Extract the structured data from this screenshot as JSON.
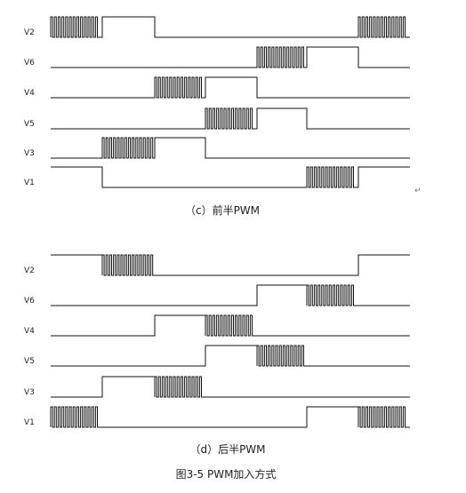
{
  "panels": [
    {
      "caption": "（c）前半PWM",
      "signals": [
        {
          "name": "V2",
          "segments": [
            [
              "pwm",
              0,
              58
            ],
            [
              "high",
              58,
              117
            ],
            [
              "low",
              117,
              346
            ],
            [
              "pwm",
              346,
              404
            ]
          ]
        },
        {
          "name": "V6",
          "segments": [
            [
              "low",
              0,
              232
            ],
            [
              "pwm",
              232,
              288
            ],
            [
              "high",
              288,
              346
            ],
            [
              "low",
              346,
              404
            ]
          ]
        },
        {
          "name": "V4",
          "segments": [
            [
              "low",
              0,
              117
            ],
            [
              "pwm",
              117,
              174
            ],
            [
              "high",
              174,
              232
            ],
            [
              "low",
              232,
              404
            ]
          ]
        },
        {
          "name": "V5",
          "segments": [
            [
              "low",
              0,
              174
            ],
            [
              "pwm",
              174,
              232
            ],
            [
              "high",
              232,
              288
            ],
            [
              "low",
              288,
              404
            ]
          ]
        },
        {
          "name": "V3",
          "segments": [
            [
              "low",
              0,
              58
            ],
            [
              "pwm",
              58,
              117
            ],
            [
              "high",
              117,
              174
            ],
            [
              "low",
              174,
              404
            ]
          ]
        },
        {
          "name": "V1",
          "segments": [
            [
              "high",
              0,
              58
            ],
            [
              "low",
              58,
              288
            ],
            [
              "pwm",
              288,
              346
            ],
            [
              "high",
              346,
              404
            ]
          ]
        }
      ]
    },
    {
      "caption": "（d）后半PWM",
      "signals": [
        {
          "name": "V2",
          "segments": [
            [
              "high",
              0,
              58
            ],
            [
              "pwm",
              58,
              117
            ],
            [
              "low",
              117,
              346
            ],
            [
              "high",
              346,
              404
            ]
          ]
        },
        {
          "name": "V6",
          "segments": [
            [
              "low",
              0,
              232
            ],
            [
              "high",
              232,
              288
            ],
            [
              "pwm",
              288,
              346
            ],
            [
              "low",
              346,
              404
            ]
          ]
        },
        {
          "name": "V4",
          "segments": [
            [
              "low",
              0,
              117
            ],
            [
              "high",
              117,
              174
            ],
            [
              "pwm",
              174,
              232
            ],
            [
              "low",
              232,
              404
            ]
          ]
        },
        {
          "name": "V5",
          "segments": [
            [
              "low",
              0,
              174
            ],
            [
              "high",
              174,
              232
            ],
            [
              "pwm",
              232,
              288
            ],
            [
              "low",
              288,
              404
            ]
          ]
        },
        {
          "name": "V3",
          "segments": [
            [
              "low",
              0,
              58
            ],
            [
              "high",
              58,
              117
            ],
            [
              "pwm",
              117,
              174
            ],
            [
              "low",
              174,
              404
            ]
          ]
        },
        {
          "name": "V1",
          "segments": [
            [
              "pwm",
              0,
              58
            ],
            [
              "low",
              58,
              288
            ],
            [
              "high",
              288,
              346
            ],
            [
              "pwm",
              346,
              404
            ]
          ]
        }
      ]
    }
  ],
  "figure_caption": "图3-5 PWM加入方式"
}
